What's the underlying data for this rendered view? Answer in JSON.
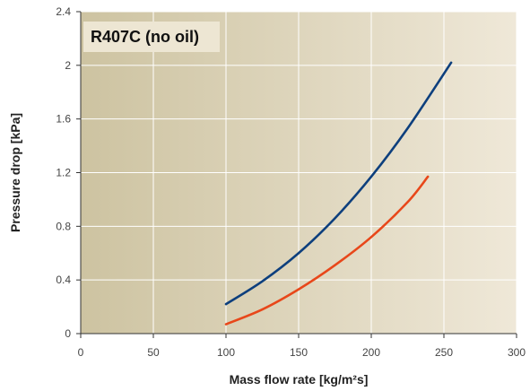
{
  "chart_data": {
    "type": "line",
    "title": "R407C (no oil)",
    "xlabel": "Mass flow rate [kg/m²s]",
    "ylabel": "Pressure drop [kPa]",
    "xlim": [
      0,
      300
    ],
    "ylim": [
      0,
      2.4
    ],
    "xticks": [
      0,
      50,
      100,
      150,
      200,
      250,
      300
    ],
    "yticks": [
      0,
      0.4,
      0.8,
      1.2,
      1.6,
      2,
      2.4
    ],
    "xtick_labels": [
      "0",
      "50",
      "100",
      "150",
      "200",
      "250",
      "300"
    ],
    "ytick_labels": [
      "0",
      "0.4",
      "0.8",
      "1.2",
      "1.6",
      "2",
      "2.4"
    ],
    "grid": true,
    "legend": "none",
    "background_gradient": [
      "#cdc3a1",
      "#efe8d8"
    ],
    "series": [
      {
        "color": "#0d3f7d",
        "x": [
          100,
          125,
          150,
          175,
          200,
          225,
          255
        ],
        "y": [
          0.22,
          0.39,
          0.6,
          0.86,
          1.17,
          1.53,
          2.02
        ]
      },
      {
        "color": "#e8471a",
        "x": [
          100,
          125,
          150,
          175,
          200,
          225,
          239
        ],
        "y": [
          0.07,
          0.18,
          0.33,
          0.51,
          0.72,
          0.98,
          1.17
        ]
      }
    ]
  }
}
